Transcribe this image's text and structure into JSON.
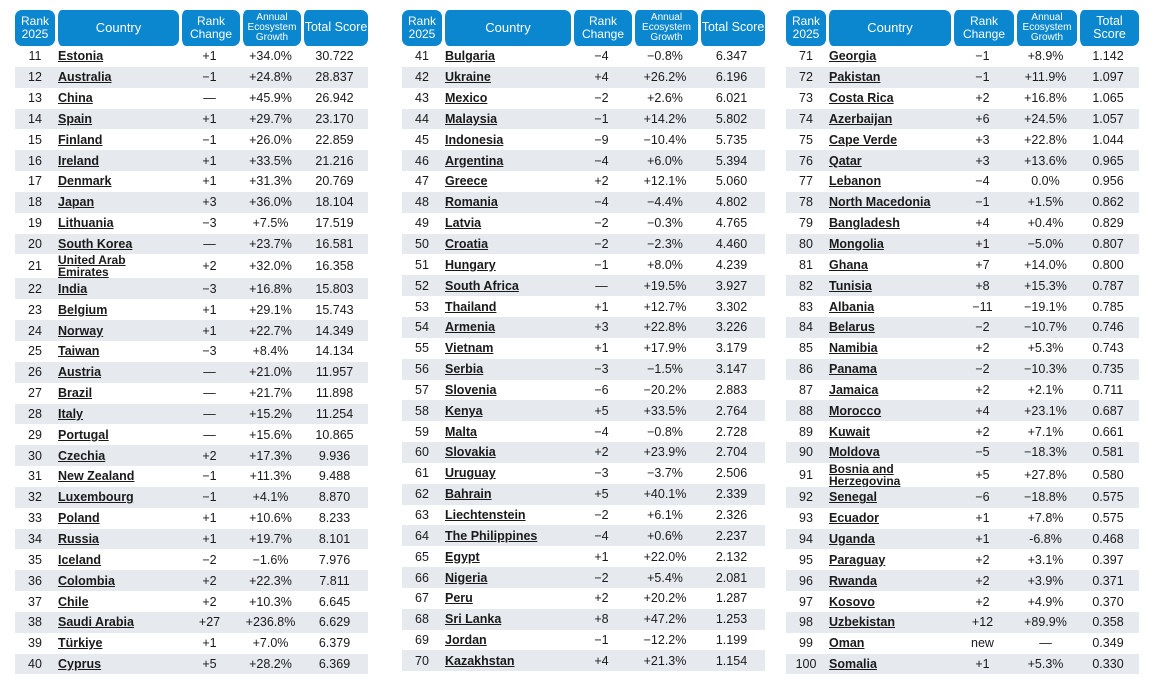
{
  "headers": {
    "rank": "Rank 2025",
    "country": "Country",
    "rank_change": "Rank Change",
    "growth": "Annual Ecosystem Growth",
    "score": "Total Score"
  },
  "panels": [
    {
      "rows": [
        {
          "rank": "11",
          "country": "Estonia",
          "change": "+1",
          "growth": "+34.0%",
          "score": "30.722"
        },
        {
          "rank": "12",
          "country": "Australia",
          "change": "−1",
          "growth": "+24.8%",
          "score": "28.837"
        },
        {
          "rank": "13",
          "country": "China",
          "change": "—",
          "growth": "+45.9%",
          "score": "26.942"
        },
        {
          "rank": "14",
          "country": "Spain",
          "change": "+1",
          "growth": "+29.7%",
          "score": "23.170"
        },
        {
          "rank": "15",
          "country": "Finland",
          "change": "−1",
          "growth": "+26.0%",
          "score": "22.859"
        },
        {
          "rank": "16",
          "country": "Ireland",
          "change": "+1",
          "growth": "+33.5%",
          "score": "21.216"
        },
        {
          "rank": "17",
          "country": "Denmark",
          "change": "+1",
          "growth": "+31.3%",
          "score": "20.769"
        },
        {
          "rank": "18",
          "country": "Japan",
          "change": "+3",
          "growth": "+36.0%",
          "score": "18.104"
        },
        {
          "rank": "19",
          "country": "Lithuania",
          "change": "−3",
          "growth": "+7.5%",
          "score": "17.519"
        },
        {
          "rank": "20",
          "country": "South Korea",
          "change": "—",
          "growth": "+23.7%",
          "score": "16.581"
        },
        {
          "rank": "21",
          "country": "United Arab Emirates",
          "change": "+2",
          "growth": "+32.0%",
          "score": "16.358"
        },
        {
          "rank": "22",
          "country": "India",
          "change": "−3",
          "growth": "+16.8%",
          "score": "15.803"
        },
        {
          "rank": "23",
          "country": "Belgium",
          "change": "+1",
          "growth": "+29.1%",
          "score": "15.743"
        },
        {
          "rank": "24",
          "country": "Norway",
          "change": "+1",
          "growth": "+22.7%",
          "score": "14.349"
        },
        {
          "rank": "25",
          "country": "Taiwan",
          "change": "−3",
          "growth": "+8.4%",
          "score": "14.134"
        },
        {
          "rank": "26",
          "country": "Austria",
          "change": "—",
          "growth": "+21.0%",
          "score": "11.957"
        },
        {
          "rank": "27",
          "country": "Brazil",
          "change": "—",
          "growth": "+21.7%",
          "score": "11.898"
        },
        {
          "rank": "28",
          "country": "Italy",
          "change": "—",
          "growth": "+15.2%",
          "score": "11.254"
        },
        {
          "rank": "29",
          "country": "Portugal",
          "change": "—",
          "growth": "+15.6%",
          "score": "10.865"
        },
        {
          "rank": "30",
          "country": "Czechia",
          "change": "+2",
          "growth": "+17.3%",
          "score": "9.936"
        },
        {
          "rank": "31",
          "country": "New Zealand",
          "change": "−1",
          "growth": "+11.3%",
          "score": "9.488"
        },
        {
          "rank": "32",
          "country": "Luxembourg",
          "change": "−1",
          "growth": "+4.1%",
          "score": "8.870"
        },
        {
          "rank": "33",
          "country": "Poland",
          "change": "+1",
          "growth": "+10.6%",
          "score": "8.233"
        },
        {
          "rank": "34",
          "country": "Russia",
          "change": "+1",
          "growth": "+19.7%",
          "score": "8.101"
        },
        {
          "rank": "35",
          "country": "Iceland",
          "change": "−2",
          "growth": "−1.6%",
          "score": "7.976"
        },
        {
          "rank": "36",
          "country": "Colombia",
          "change": "+2",
          "growth": "+22.3%",
          "score": "7.811"
        },
        {
          "rank": "37",
          "country": "Chile",
          "change": "+2",
          "growth": "+10.3%",
          "score": "6.645"
        },
        {
          "rank": "38",
          "country": "Saudi Arabia",
          "change": "+27",
          "growth": "+236.8%",
          "score": "6.629"
        },
        {
          "rank": "39",
          "country": "Türkiye",
          "change": "+1",
          "growth": "+7.0%",
          "score": "6.379"
        },
        {
          "rank": "40",
          "country": "Cyprus",
          "change": "+5",
          "growth": "+28.2%",
          "score": "6.369"
        }
      ]
    },
    {
      "rows": [
        {
          "rank": "41",
          "country": "Bulgaria",
          "change": "−4",
          "growth": "−0.8%",
          "score": "6.347"
        },
        {
          "rank": "42",
          "country": "Ukraine",
          "change": "+4",
          "growth": "+26.2%",
          "score": "6.196"
        },
        {
          "rank": "43",
          "country": "Mexico",
          "change": "−2",
          "growth": "+2.6%",
          "score": "6.021"
        },
        {
          "rank": "44",
          "country": "Malaysia",
          "change": "−1",
          "growth": "+14.2%",
          "score": "5.802"
        },
        {
          "rank": "45",
          "country": "Indonesia",
          "change": "−9",
          "growth": "−10.4%",
          "score": "5.735"
        },
        {
          "rank": "46",
          "country": "Argentina",
          "change": "−4",
          "growth": "+6.0%",
          "score": "5.394"
        },
        {
          "rank": "47",
          "country": "Greece",
          "change": "+2",
          "growth": "+12.1%",
          "score": "5.060"
        },
        {
          "rank": "48",
          "country": "Romania",
          "change": "−4",
          "growth": "−4.4%",
          "score": "4.802"
        },
        {
          "rank": "49",
          "country": "Latvia",
          "change": "−2",
          "growth": "−0.3%",
          "score": "4.765"
        },
        {
          "rank": "50",
          "country": "Croatia",
          "change": "−2",
          "growth": "−2.3%",
          "score": "4.460"
        },
        {
          "rank": "51",
          "country": "Hungary",
          "change": "−1",
          "growth": "+8.0%",
          "score": "4.239"
        },
        {
          "rank": "52",
          "country": "South Africa",
          "change": "—",
          "growth": "+19.5%",
          "score": "3.927"
        },
        {
          "rank": "53",
          "country": "Thailand",
          "change": "+1",
          "growth": "+12.7%",
          "score": "3.302"
        },
        {
          "rank": "54",
          "country": "Armenia",
          "change": "+3",
          "growth": "+22.8%",
          "score": "3.226"
        },
        {
          "rank": "55",
          "country": "Vietnam",
          "change": "+1",
          "growth": "+17.9%",
          "score": "3.179"
        },
        {
          "rank": "56",
          "country": "Serbia",
          "change": "−3",
          "growth": "−1.5%",
          "score": "3.147"
        },
        {
          "rank": "57",
          "country": "Slovenia",
          "change": "−6",
          "growth": "−20.2%",
          "score": "2.883"
        },
        {
          "rank": "58",
          "country": "Kenya",
          "change": "+5",
          "growth": "+33.5%",
          "score": "2.764"
        },
        {
          "rank": "59",
          "country": "Malta",
          "change": "−4",
          "growth": "−0.8%",
          "score": "2.728"
        },
        {
          "rank": "60",
          "country": "Slovakia",
          "change": "+2",
          "growth": "+23.9%",
          "score": "2.704"
        },
        {
          "rank": "61",
          "country": "Uruguay",
          "change": "−3",
          "growth": "−3.7%",
          "score": "2.506"
        },
        {
          "rank": "62",
          "country": "Bahrain",
          "change": "+5",
          "growth": "+40.1%",
          "score": "2.339"
        },
        {
          "rank": "63",
          "country": "Liechtenstein",
          "change": "−2",
          "growth": "+6.1%",
          "score": "2.326"
        },
        {
          "rank": "64",
          "country": "The Philippines",
          "change": "−4",
          "growth": "+0.6%",
          "score": "2.237"
        },
        {
          "rank": "65",
          "country": "Egypt",
          "change": "+1",
          "growth": "+22.0%",
          "score": "2.132"
        },
        {
          "rank": "66",
          "country": "Nigeria",
          "change": "−2",
          "growth": "+5.4%",
          "score": "2.081"
        },
        {
          "rank": "67",
          "country": "Peru",
          "change": "+2",
          "growth": "+20.2%",
          "score": "1.287"
        },
        {
          "rank": "68",
          "country": "Sri Lanka",
          "change": "+8",
          "growth": "+47.2%",
          "score": "1.253"
        },
        {
          "rank": "69",
          "country": "Jordan",
          "change": "−1",
          "growth": "−12.2%",
          "score": "1.199"
        },
        {
          "rank": "70",
          "country": "Kazakhstan",
          "change": "+4",
          "growth": "+21.3%",
          "score": "1.154"
        }
      ]
    },
    {
      "rows": [
        {
          "rank": "71",
          "country": "Georgia",
          "change": "−1",
          "growth": "+8.9%",
          "score": "1.142"
        },
        {
          "rank": "72",
          "country": "Pakistan",
          "change": "−1",
          "growth": "+11.9%",
          "score": "1.097"
        },
        {
          "rank": "73",
          "country": "Costa Rica",
          "change": "+2",
          "growth": "+16.8%",
          "score": "1.065"
        },
        {
          "rank": "74",
          "country": "Azerbaijan",
          "change": "+6",
          "growth": "+24.5%",
          "score": "1.057"
        },
        {
          "rank": "75",
          "country": "Cape Verde",
          "change": "+3",
          "growth": "+22.8%",
          "score": "1.044"
        },
        {
          "rank": "76",
          "country": "Qatar",
          "change": "+3",
          "growth": "+13.6%",
          "score": "0.965"
        },
        {
          "rank": "77",
          "country": "Lebanon",
          "change": "−4",
          "growth": "0.0%",
          "score": "0.956"
        },
        {
          "rank": "78",
          "country": "North Macedonia",
          "change": "−1",
          "growth": "+1.5%",
          "score": "0.862"
        },
        {
          "rank": "79",
          "country": "Bangladesh",
          "change": "+4",
          "growth": "+0.4%",
          "score": "0.829"
        },
        {
          "rank": "80",
          "country": "Mongolia",
          "change": "+1",
          "growth": "−5.0%",
          "score": "0.807"
        },
        {
          "rank": "81",
          "country": "Ghana",
          "change": "+7",
          "growth": "+14.0%",
          "score": "0.800"
        },
        {
          "rank": "82",
          "country": "Tunisia",
          "change": "+8",
          "growth": "+15.3%",
          "score": "0.787"
        },
        {
          "rank": "83",
          "country": "Albania",
          "change": "−11",
          "growth": "−19.1%",
          "score": "0.785"
        },
        {
          "rank": "84",
          "country": "Belarus",
          "change": "−2",
          "growth": "−10.7%",
          "score": "0.746"
        },
        {
          "rank": "85",
          "country": "Namibia",
          "change": "+2",
          "growth": "+5.3%",
          "score": "0.743"
        },
        {
          "rank": "86",
          "country": "Panama",
          "change": "−2",
          "growth": "−10.3%",
          "score": "0.735"
        },
        {
          "rank": "87",
          "country": "Jamaica",
          "change": "+2",
          "growth": "+2.1%",
          "score": "0.711"
        },
        {
          "rank": "88",
          "country": "Morocco",
          "change": "+4",
          "growth": "+23.1%",
          "score": "0.687"
        },
        {
          "rank": "89",
          "country": "Kuwait",
          "change": "+2",
          "growth": "+7.1%",
          "score": "0.661"
        },
        {
          "rank": "90",
          "country": "Moldova",
          "change": "−5",
          "growth": "−18.3%",
          "score": "0.581"
        },
        {
          "rank": "91",
          "country": "Bosnia and Herzegovina",
          "change": "+5",
          "growth": "+27.8%",
          "score": "0.580"
        },
        {
          "rank": "92",
          "country": "Senegal",
          "change": "−6",
          "growth": "−18.8%",
          "score": "0.575"
        },
        {
          "rank": "93",
          "country": "Ecuador",
          "change": "+1",
          "growth": "+7.8%",
          "score": "0.575"
        },
        {
          "rank": "94",
          "country": "Uganda",
          "change": "+1",
          "growth": "-6.8%",
          "score": "0.468"
        },
        {
          "rank": "95",
          "country": "Paraguay",
          "change": "+2",
          "growth": "+3.1%",
          "score": "0.397"
        },
        {
          "rank": "96",
          "country": "Rwanda",
          "change": "+2",
          "growth": "+3.9%",
          "score": "0.371"
        },
        {
          "rank": "97",
          "country": "Kosovo",
          "change": "+2",
          "growth": "+4.9%",
          "score": "0.370"
        },
        {
          "rank": "98",
          "country": "Uzbekistan",
          "change": "+12",
          "growth": "+89.9%",
          "score": "0.358"
        },
        {
          "rank": "99",
          "country": "Oman",
          "change": "new",
          "growth": "—",
          "score": "0.349"
        },
        {
          "rank": "100",
          "country": "Somalia",
          "change": "+1",
          "growth": "+5.3%",
          "score": "0.330"
        }
      ]
    }
  ]
}
